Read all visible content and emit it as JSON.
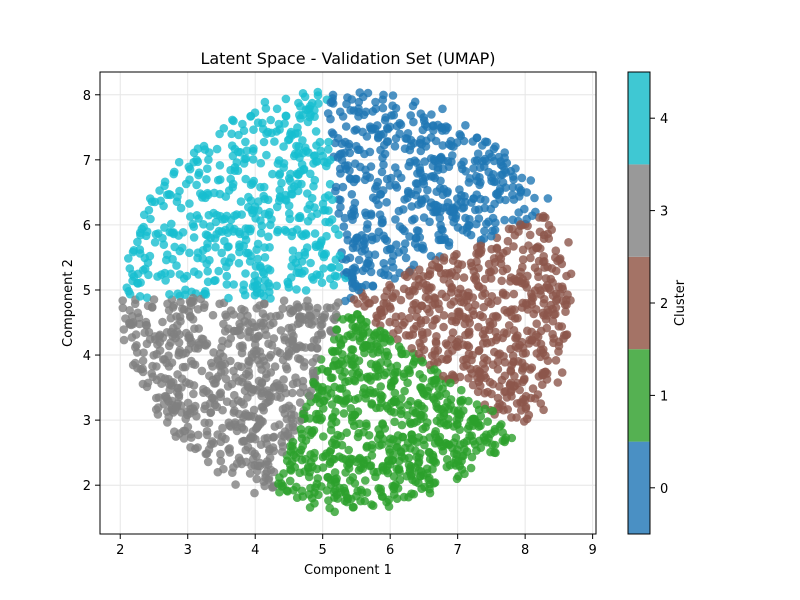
{
  "chart_data": {
    "type": "scatter",
    "title": "Latent Space - Validation Set (UMAP)",
    "xlabel": "Component 1",
    "ylabel": "Component 2",
    "xlim": [
      1.7,
      9.05
    ],
    "ylim": [
      1.25,
      8.35
    ],
    "xticks": [
      2,
      3,
      4,
      5,
      6,
      7,
      8,
      9
    ],
    "yticks": [
      2,
      3,
      4,
      5,
      6,
      7,
      8
    ],
    "grid": true,
    "colorbar": {
      "label": "Cluster",
      "ticks": [
        0,
        1,
        2,
        3,
        4
      ],
      "colors": [
        "#1f77b4",
        "#2ca02c",
        "#8c564b",
        "#7f7f7f",
        "#17becf"
      ]
    },
    "disk": {
      "center": [
        5.35,
        4.85
      ],
      "radius_x": 3.3,
      "radius_y": 3.2
    },
    "clusters": [
      {
        "cluster": 0,
        "color": "#1f77b4",
        "centroid": [
          5.9,
          6.7
        ],
        "angle_range_deg": [
          25,
          95
        ],
        "approx_points": 520
      },
      {
        "cluster": 1,
        "color": "#2ca02c",
        "centroid": [
          5.9,
          2.9
        ],
        "angle_range_deg": [
          -110,
          -40
        ],
        "approx_points": 700
      },
      {
        "cluster": 2,
        "color": "#8c564b",
        "centroid": [
          7.6,
          4.9
        ],
        "angle_range_deg": [
          -40,
          25
        ],
        "approx_points": 560
      },
      {
        "cluster": 3,
        "color": "#7f7f7f",
        "centroid": [
          3.5,
          3.8
        ],
        "angle_range_deg": [
          180,
          250
        ],
        "approx_points": 620
      },
      {
        "cluster": 4,
        "color": "#17becf",
        "centroid": [
          3.6,
          6.3
        ],
        "angle_range_deg": [
          95,
          180
        ],
        "approx_points": 500
      }
    ]
  }
}
